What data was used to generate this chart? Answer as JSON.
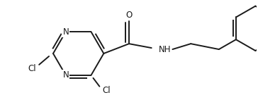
{
  "bg_color": "#ffffff",
  "line_color": "#1a1a1a",
  "line_width": 1.4,
  "font_size": 8.5,
  "figsize": [
    3.64,
    1.52
  ],
  "dpi": 100,
  "xlim": [
    0,
    364
  ],
  "ylim": [
    0,
    152
  ]
}
